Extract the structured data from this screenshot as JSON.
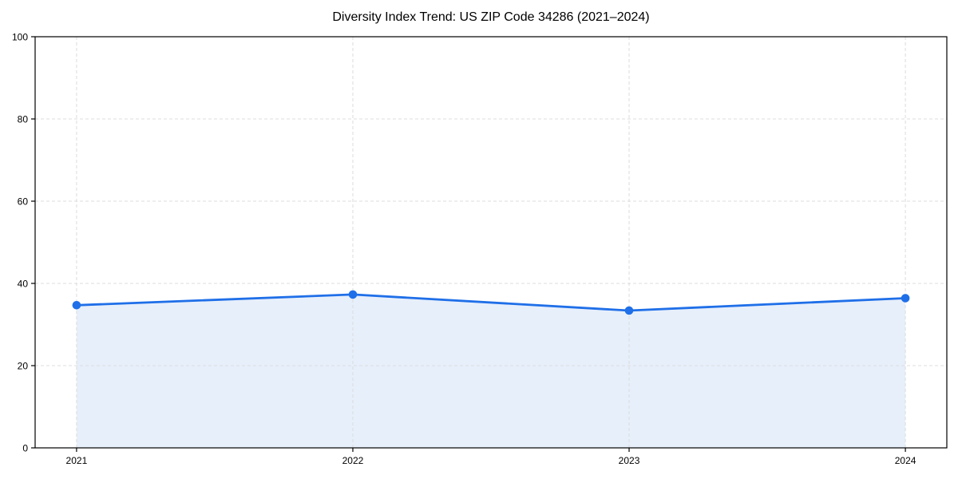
{
  "chart_data": {
    "type": "area",
    "title": "Diversity Index Trend: US ZIP Code 34286 (2021–2024)",
    "x": [
      2021,
      2022,
      2023,
      2024
    ],
    "x_labels": [
      "2021",
      "2022",
      "2023",
      "2024"
    ],
    "series": [
      {
        "name": "Diversity Index",
        "values": [
          34.7,
          37.3,
          33.4,
          36.4
        ]
      }
    ],
    "xlabel": "",
    "ylabel": "",
    "xlim": [
      2020.85,
      2024.15
    ],
    "ylim": [
      0,
      100
    ],
    "yticks": [
      0,
      20,
      40,
      60,
      80,
      100
    ],
    "grid": "dashed",
    "grid_color": "#dcdcdc",
    "legend": "none",
    "line_color": "#1f6fe8",
    "marker_color": "#1f6fe8",
    "fill_color": "#e7effb",
    "spine_color": "#000000",
    "background": "#ffffff"
  }
}
